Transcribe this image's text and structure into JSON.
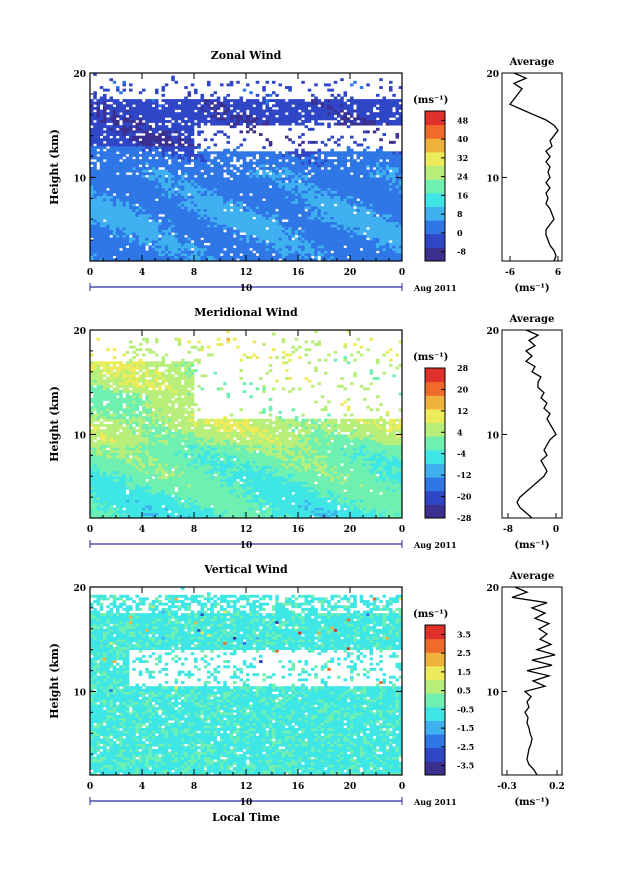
{
  "chart_data": [
    {
      "type": "heatmap",
      "title": "Zonal Wind",
      "ylabel": "Height (km)",
      "y_ticks": [
        "20",
        "10"
      ],
      "x_ticks": [
        "0",
        "4",
        "8",
        "12",
        "16",
        "20",
        "0"
      ],
      "date_label": "10",
      "month_label": "Aug 2011",
      "ylim": [
        2,
        20
      ],
      "xlim": [
        0,
        24
      ],
      "colorbar": {
        "unit": "(ms⁻¹)",
        "ticks": [
          "48",
          "40",
          "32",
          "24",
          "16",
          "8",
          "0",
          "-8"
        ],
        "values": [
          -8,
          0,
          8,
          16,
          24,
          32,
          40,
          48
        ],
        "range": [
          -12,
          52
        ]
      },
      "average": {
        "title": "Average",
        "unit": "(ms⁻¹)",
        "x_ticks": [
          "-6",
          "6"
        ],
        "y_ticks": [
          "20",
          "10"
        ],
        "xlim": [
          -8,
          7
        ],
        "profile": [
          [
            20,
            -5
          ],
          [
            19.5,
            -2
          ],
          [
            19,
            -5
          ],
          [
            18.5,
            -3
          ],
          [
            18,
            -4
          ],
          [
            17.5,
            -5
          ],
          [
            17,
            -6
          ],
          [
            16.5,
            -3
          ],
          [
            16,
            0
          ],
          [
            15.5,
            3
          ],
          [
            15,
            5
          ],
          [
            14.5,
            6
          ],
          [
            14,
            5
          ],
          [
            13.5,
            4
          ],
          [
            13,
            4.5
          ],
          [
            12.5,
            3
          ],
          [
            12,
            4
          ],
          [
            11.5,
            3
          ],
          [
            11,
            4
          ],
          [
            10.5,
            3.5
          ],
          [
            10,
            4
          ],
          [
            9.5,
            3
          ],
          [
            9,
            4
          ],
          [
            8.5,
            3
          ],
          [
            8,
            3.5
          ],
          [
            7.5,
            3
          ],
          [
            7,
            4
          ],
          [
            6.5,
            4.5
          ],
          [
            6,
            5
          ],
          [
            5.5,
            4
          ],
          [
            5,
            3
          ],
          [
            4.5,
            3
          ],
          [
            4,
            3.5
          ],
          [
            3.5,
            4
          ],
          [
            3,
            5
          ],
          [
            2.5,
            5.5
          ],
          [
            2,
            5
          ]
        ]
      }
    },
    {
      "type": "heatmap",
      "title": "Meridional Wind",
      "ylabel": "Height (km)",
      "y_ticks": [
        "20",
        "10"
      ],
      "x_ticks": [
        "0",
        "4",
        "8",
        "12",
        "16",
        "20",
        "0"
      ],
      "date_label": "10",
      "month_label": "Aug 2011",
      "ylim": [
        2,
        20
      ],
      "xlim": [
        0,
        24
      ],
      "colorbar": {
        "unit": "(ms⁻¹)",
        "ticks": [
          "28",
          "20",
          "12",
          "4",
          "-4",
          "-12",
          "-20",
          "-28"
        ],
        "values": [
          -28,
          -20,
          -12,
          -4,
          4,
          12,
          20,
          28
        ],
        "range": [
          -28,
          28
        ]
      },
      "average": {
        "title": "Average",
        "unit": "(ms⁻¹)",
        "x_ticks": [
          "-8",
          "0"
        ],
        "y_ticks": [
          "20",
          "10"
        ],
        "xlim": [
          -9,
          1
        ],
        "profile": [
          [
            20,
            -5
          ],
          [
            19.5,
            -3
          ],
          [
            19,
            -4.5
          ],
          [
            18.5,
            -3.5
          ],
          [
            18,
            -5
          ],
          [
            17.5,
            -4
          ],
          [
            17,
            -5
          ],
          [
            16.5,
            -3.5
          ],
          [
            16,
            -4
          ],
          [
            15.5,
            -2.5
          ],
          [
            15,
            -3
          ],
          [
            14.5,
            -3
          ],
          [
            14,
            -2
          ],
          [
            13.5,
            -2.5
          ],
          [
            13,
            -1.5
          ],
          [
            12.5,
            -2
          ],
          [
            12,
            -1
          ],
          [
            11.5,
            -1.5
          ],
          [
            11,
            -1
          ],
          [
            10.5,
            -0.5
          ],
          [
            10,
            0
          ],
          [
            9.5,
            -1
          ],
          [
            9,
            -1.5
          ],
          [
            8.5,
            -2
          ],
          [
            8,
            -1.5
          ],
          [
            7.5,
            -2.5
          ],
          [
            7,
            -2
          ],
          [
            6.5,
            -1.5
          ],
          [
            6,
            -2
          ],
          [
            5.5,
            -3
          ],
          [
            5,
            -4
          ],
          [
            4.5,
            -5
          ],
          [
            4,
            -6
          ],
          [
            3.5,
            -6.5
          ],
          [
            3,
            -6
          ],
          [
            2.5,
            -5
          ],
          [
            2,
            -4
          ]
        ]
      }
    },
    {
      "type": "heatmap",
      "title": "Vertical Wind",
      "ylabel": "Height (km)",
      "xlabel": "Local Time",
      "y_ticks": [
        "20",
        "10"
      ],
      "x_ticks": [
        "0",
        "4",
        "8",
        "12",
        "16",
        "20",
        "0"
      ],
      "date_label": "10",
      "month_label": "Aug 2011",
      "ylim": [
        2,
        20
      ],
      "xlim": [
        0,
        24
      ],
      "colorbar": {
        "unit": "(ms⁻¹)",
        "ticks": [
          "3.5",
          "2.5",
          "1.5",
          "0.5",
          "-0.5",
          "-1.5",
          "-2.5",
          "-3.5"
        ],
        "values": [
          -3.5,
          -2.5,
          -1.5,
          -0.5,
          0.5,
          1.5,
          2.5,
          3.5
        ],
        "range": [
          -4,
          4
        ]
      },
      "average": {
        "title": "Average",
        "unit": "(ms⁻¹)",
        "x_ticks": [
          "-0.3",
          "0.2"
        ],
        "y_ticks": [
          "20",
          "10"
        ],
        "xlim": [
          -0.35,
          0.25
        ],
        "profile": [
          [
            20,
            -0.22
          ],
          [
            19.5,
            -0.1
          ],
          [
            19,
            -0.25
          ],
          [
            18.5,
            0.1
          ],
          [
            18,
            -0.05
          ],
          [
            17.5,
            0.08
          ],
          [
            17,
            -0.02
          ],
          [
            16.5,
            0.12
          ],
          [
            16,
            0.02
          ],
          [
            15.5,
            0.1
          ],
          [
            15,
            0.03
          ],
          [
            14.5,
            0.14
          ],
          [
            14,
            0.0
          ],
          [
            13.5,
            0.18
          ],
          [
            13,
            -0.05
          ],
          [
            12.5,
            0.15
          ],
          [
            12,
            -0.1
          ],
          [
            11.5,
            0.12
          ],
          [
            11,
            -0.04
          ],
          [
            10.5,
            0.08
          ],
          [
            10,
            -0.12
          ],
          [
            9.5,
            -0.06
          ],
          [
            9,
            -0.1
          ],
          [
            8.5,
            -0.08
          ],
          [
            8,
            -0.12
          ],
          [
            7.5,
            -0.09
          ],
          [
            7,
            -0.1
          ],
          [
            6.5,
            -0.08
          ],
          [
            6,
            -0.07
          ],
          [
            5.5,
            -0.05
          ],
          [
            5,
            -0.06
          ],
          [
            4.5,
            -0.08
          ],
          [
            4,
            -0.09
          ],
          [
            3.5,
            -0.1
          ],
          [
            3,
            -0.08
          ],
          [
            2.5,
            -0.03
          ],
          [
            2,
            0.0
          ]
        ]
      }
    }
  ]
}
